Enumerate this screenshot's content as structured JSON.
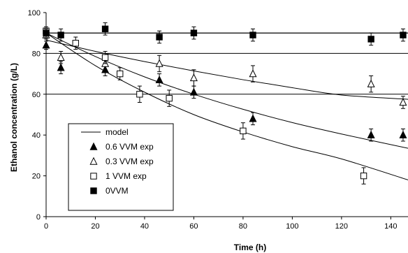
{
  "chart_data": {
    "type": "scatter",
    "xlabel": "Time (h)",
    "ylabel": "Ethanol concentration (g/L)",
    "xlim": [
      0,
      147
    ],
    "ylim": [
      0,
      100
    ],
    "xticks": [
      "0",
      "20",
      "40",
      "60",
      "80",
      "100",
      "120",
      "140"
    ],
    "yticks": [
      "0",
      "20",
      "40",
      "60",
      "80",
      "100"
    ],
    "grid": "horizontal lines at 60, 80 and 90",
    "legend_position": "bottom-left",
    "legend": [
      "model",
      "0.6 VVM exp",
      "0.3 VVM exp",
      "1 VVM exp",
      "0VVM"
    ],
    "series": [
      {
        "name": "0.6 VVM exp",
        "marker": "filled-triangle",
        "points": [
          {
            "x": 0,
            "y": 84,
            "err": 2
          },
          {
            "x": 6,
            "y": 73,
            "err": 3
          },
          {
            "x": 24,
            "y": 72,
            "err": 3
          },
          {
            "x": 46,
            "y": 67,
            "err": 3
          },
          {
            "x": 60,
            "y": 61,
            "err": 3
          },
          {
            "x": 84,
            "y": 48,
            "err": 3
          },
          {
            "x": 132,
            "y": 40,
            "err": 3
          },
          {
            "x": 145,
            "y": 40,
            "err": 3
          }
        ]
      },
      {
        "name": "0.3 VVM exp",
        "marker": "open-triangle",
        "points": [
          {
            "x": 0,
            "y": 89,
            "err": 2
          },
          {
            "x": 6,
            "y": 78,
            "err": 3
          },
          {
            "x": 24,
            "y": 75,
            "err": 3
          },
          {
            "x": 46,
            "y": 75,
            "err": 4
          },
          {
            "x": 60,
            "y": 68,
            "err": 4
          },
          {
            "x": 84,
            "y": 70,
            "err": 4
          },
          {
            "x": 132,
            "y": 65,
            "err": 4
          },
          {
            "x": 145,
            "y": 56,
            "err": 3
          }
        ]
      },
      {
        "name": "1 VVM exp",
        "marker": "open-square",
        "points": [
          {
            "x": 0,
            "y": 91,
            "err": 2
          },
          {
            "x": 12,
            "y": 85,
            "err": 3
          },
          {
            "x": 24,
            "y": 78,
            "err": 3
          },
          {
            "x": 30,
            "y": 70,
            "err": 3
          },
          {
            "x": 38,
            "y": 60,
            "err": 4
          },
          {
            "x": 50,
            "y": 58,
            "err": 4
          },
          {
            "x": 80,
            "y": 42,
            "err": 4
          },
          {
            "x": 129,
            "y": 20,
            "err": 4
          }
        ]
      },
      {
        "name": "0VVM",
        "marker": "filled-square",
        "points": [
          {
            "x": 0,
            "y": 90,
            "err": 2
          },
          {
            "x": 6,
            "y": 89,
            "err": 3
          },
          {
            "x": 24,
            "y": 92,
            "err": 3
          },
          {
            "x": 46,
            "y": 88,
            "err": 3
          },
          {
            "x": 60,
            "y": 90,
            "err": 3
          },
          {
            "x": 84,
            "y": 89,
            "err": 3
          },
          {
            "x": 132,
            "y": 87,
            "err": 3
          },
          {
            "x": 145,
            "y": 89,
            "err": 3
          }
        ]
      }
    ],
    "models": [
      {
        "name": "model",
        "for": "0VVM",
        "x": [
          0,
          20,
          40,
          60,
          80,
          100,
          120,
          147
        ],
        "y": [
          90,
          90,
          90,
          90,
          90,
          90,
          90,
          90
        ]
      },
      {
        "name": "model",
        "for": "0.3 VVM exp",
        "x": [
          0,
          20,
          40,
          60,
          80,
          100,
          120,
          147
        ],
        "y": [
          86.5,
          81,
          76,
          71.4,
          67.1,
          63.2,
          59.6,
          57.5
        ]
      },
      {
        "name": "model",
        "for": "0.6 VVM exp",
        "x": [
          0,
          20,
          40,
          60,
          80,
          100,
          120,
          147
        ],
        "y": [
          90,
          78.5,
          68.5,
          60,
          52.6,
          46.1,
          40.5,
          33.5
        ]
      },
      {
        "name": "model",
        "for": "1 VVM exp",
        "x": [
          0,
          20,
          40,
          60,
          80,
          100,
          120,
          147
        ],
        "y": [
          90,
          74,
          61,
          50,
          41.5,
          34.3,
          28.3,
          18
        ]
      }
    ]
  }
}
